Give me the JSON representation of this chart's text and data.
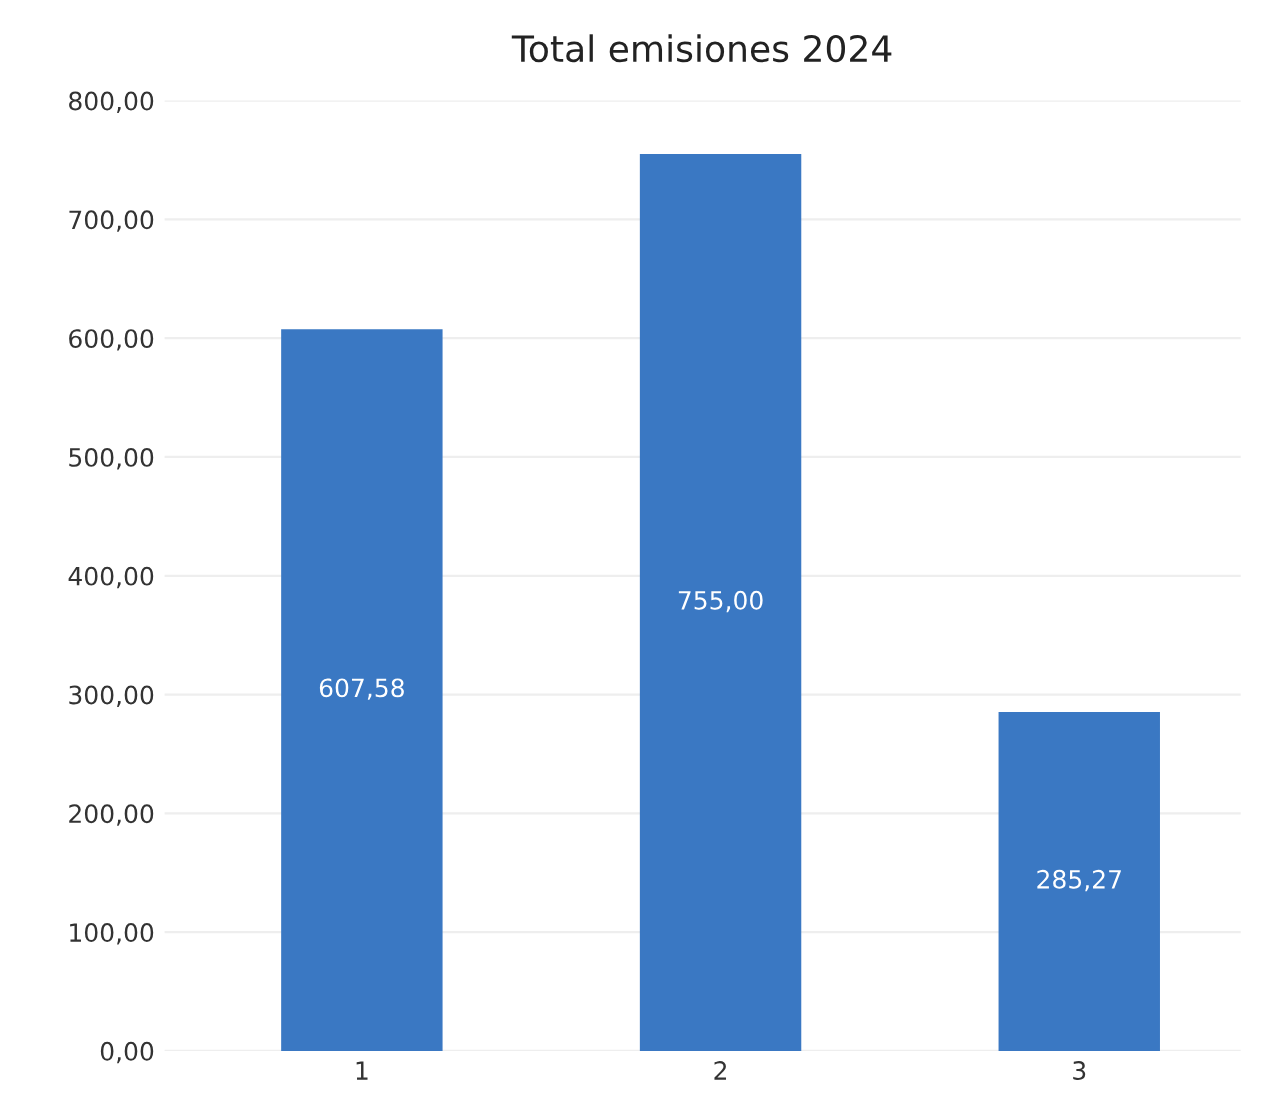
{
  "chart_data": {
    "type": "bar",
    "title": "Total emisiones 2024",
    "categories": [
      "1",
      "2",
      "3"
    ],
    "values": [
      607.58,
      755.0,
      285.27
    ],
    "value_labels": [
      "607,58",
      "755,00",
      "285,27"
    ],
    "color": "#3a78c3",
    "ylim": [
      0,
      800
    ],
    "yticks": [
      {
        "value": 0,
        "label": "0,00"
      },
      {
        "value": 100,
        "label": "100,00"
      },
      {
        "value": 200,
        "label": "200,00"
      },
      {
        "value": 300,
        "label": "300,00"
      },
      {
        "value": 400,
        "label": "400,00"
      },
      {
        "value": 500,
        "label": "500,00"
      },
      {
        "value": 600,
        "label": "600,00"
      },
      {
        "value": 700,
        "label": "700,00"
      },
      {
        "value": 800,
        "label": "800,00"
      }
    ],
    "grid": "y"
  }
}
